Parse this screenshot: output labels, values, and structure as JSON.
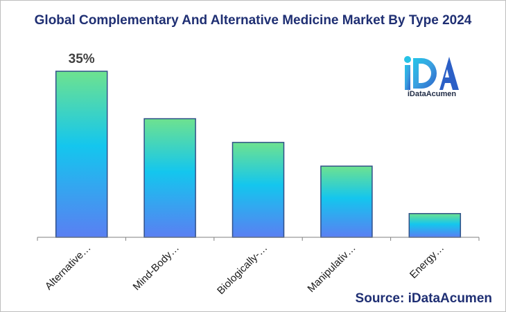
{
  "chart_data": {
    "type": "bar",
    "title": "Global Complementary And Alternative Medicine Market By Type 2024",
    "categories": [
      "Alternative…",
      "Mind-Body…",
      "Biologically-…",
      "Manipulativ…",
      "Energy…"
    ],
    "values": [
      35,
      25,
      20,
      15,
      5
    ],
    "data_labels": [
      "35%",
      "",
      "",
      "",
      ""
    ],
    "ylim": [
      0,
      35
    ],
    "grid": false,
    "legend": "none"
  },
  "logo": {
    "text": "iDataAcumen",
    "mark": "iDA"
  },
  "source": "Source: iDataAcumen",
  "colors": {
    "bar_top": "#6ee28f",
    "bar_mid": "#14c6ee",
    "bar_bottom": "#5a7ff2",
    "bar_border": "#2f4f88",
    "title": "#1f2f73"
  }
}
